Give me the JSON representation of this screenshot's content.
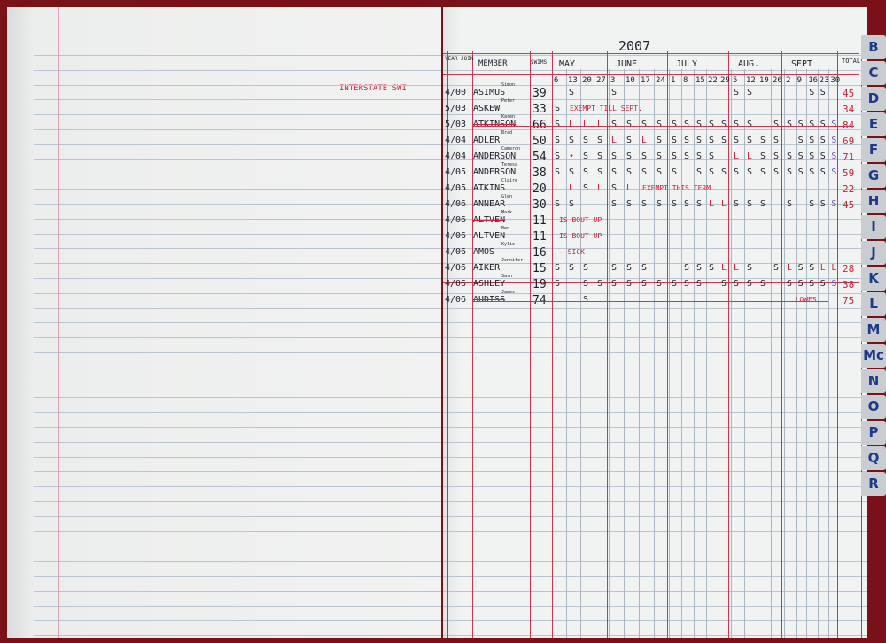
{
  "left_page": {
    "margin_note": "INTERSTATE SWI"
  },
  "ledger": {
    "year": "2007",
    "headers": {
      "year_join": "YEAR JOIN",
      "member": "MEMBER",
      "swims": "SWIMS",
      "total": "TOTAL"
    },
    "months": [
      {
        "name": "MAY",
        "dates": [
          "6",
          "13",
          "20",
          "27"
        ]
      },
      {
        "name": "JUNE",
        "dates": [
          "3",
          "10",
          "17",
          "24"
        ]
      },
      {
        "name": "JULY",
        "dates": [
          "1",
          "8",
          "15",
          "22",
          "29"
        ]
      },
      {
        "name": "AUG.",
        "dates": [
          "5",
          "12",
          "19",
          "26"
        ]
      },
      {
        "name": "SEPT",
        "dates": [
          "2",
          "9",
          "16",
          "23",
          "30"
        ]
      }
    ],
    "rows": [
      {
        "joined": "4/00",
        "surname": "ASIMUS",
        "first": "Simon",
        "swims": "39",
        "cells": [
          "",
          "S",
          "",
          "",
          "S",
          "",
          "",
          "",
          "",
          "",
          "",
          "",
          "",
          "S",
          "S",
          "",
          "",
          "",
          "",
          "S",
          "S",
          ""
        ],
        "note": "",
        "total": "45",
        "struck": false
      },
      {
        "joined": "5/03",
        "surname": "ASKEW",
        "first": "Peter",
        "swims": "33",
        "cells": [
          "S",
          "",
          "",
          "",
          "",
          "",
          "",
          "",
          "",
          "",
          "",
          "",
          "",
          "",
          "",
          "",
          "",
          "",
          "",
          "",
          "",
          ""
        ],
        "note": "EXEMPT TILL SEPT.",
        "total": "34",
        "struck": false
      },
      {
        "joined": "5/03",
        "surname": "ATKINSON",
        "first": "Karen",
        "swims": "66",
        "cells": [
          "S",
          "L",
          "L",
          "L",
          "S",
          "S",
          "S",
          "S",
          "S",
          "S",
          "S",
          "S",
          "S",
          "S",
          "S",
          "",
          "S",
          "S",
          "S",
          "S",
          "S",
          "S"
        ],
        "note": "",
        "total": "84",
        "struck": true
      },
      {
        "joined": "4/04",
        "surname": "ADLER",
        "first": "Brad",
        "swims": "50",
        "cells": [
          "S",
          "S",
          "S",
          "S",
          "L",
          "S",
          "L",
          "S",
          "S",
          "S",
          "S",
          "S",
          "S",
          "S",
          "S",
          "S",
          "S",
          "",
          "S",
          "S",
          "S",
          "S"
        ],
        "note": "",
        "total": "69",
        "struck": false
      },
      {
        "joined": "4/04",
        "surname": "ANDERSON",
        "first": "Cameron",
        "swims": "54",
        "cells": [
          "S",
          "•",
          "S",
          "S",
          "S",
          "S",
          "S",
          "S",
          "S",
          "S",
          "S",
          "S",
          "",
          "L",
          "L",
          "S",
          "S",
          "S",
          "S",
          "S",
          "S",
          "S"
        ],
        "note": "",
        "total": "71",
        "struck": false
      },
      {
        "joined": "4/05",
        "surname": "ANDERSON",
        "first": "Teresa",
        "swims": "38",
        "cells": [
          "S",
          "S",
          "S",
          "S",
          "S",
          "S",
          "S",
          "S",
          "S",
          "",
          "S",
          "S",
          "S",
          "S",
          "S",
          "S",
          "S",
          "S",
          "S",
          "S",
          "S",
          "S"
        ],
        "note": "",
        "total": "59",
        "struck": false
      },
      {
        "joined": "4/05",
        "surname": "ATKINS",
        "first": "Claire",
        "swims": "20",
        "cells": [
          "L",
          "L",
          "S",
          "L",
          "S",
          "L",
          "",
          "",
          "",
          "",
          "",
          "",
          "",
          "",
          "",
          "",
          "",
          "",
          "",
          "",
          "",
          ""
        ],
        "note": "EXEMPT THIS TERM",
        "total": "22",
        "struck": false
      },
      {
        "joined": "4/06",
        "surname": "ANNEAR",
        "first": "Glen",
        "swims": "30",
        "cells": [
          "S",
          "S",
          "",
          "",
          "S",
          "S",
          "S",
          "S",
          "S",
          "S",
          "S",
          "L",
          "L",
          "S",
          "S",
          "S",
          "",
          "S",
          "",
          "S",
          "S",
          "S"
        ],
        "note": "",
        "total": "45",
        "struck": false
      },
      {
        "joined": "4/06",
        "surname": "ALTVEN",
        "first": "Mark",
        "swims": "11",
        "cells": [],
        "note": "IS BOUT UP",
        "total": "",
        "struck": true
      },
      {
        "joined": "4/06",
        "surname": "ALTVEN",
        "first": "Ben",
        "swims": "11",
        "cells": [],
        "note": "IS BOUT UP",
        "total": "",
        "struck": true
      },
      {
        "joined": "4/06",
        "surname": "AMOS",
        "first": "Kylie",
        "swims": "16",
        "cells": [],
        "note": "— SICK",
        "total": "",
        "struck": true
      },
      {
        "joined": "4/06",
        "surname": "AIKER",
        "first": "Jennifer",
        "swims": "15",
        "cells": [
          "S",
          "S",
          "S",
          "",
          "S",
          "S",
          "S",
          "",
          "",
          "S",
          "S",
          "S",
          "L",
          "L",
          "S",
          "",
          "S",
          "L",
          "S",
          "S",
          "L",
          "L"
        ],
        "note": "",
        "total": "28",
        "struck": false
      },
      {
        "joined": "4/06",
        "surname": "ASHLEY",
        "first": "Sarn",
        "swims": "19",
        "cells": [
          "S",
          "",
          "S",
          "S",
          "S",
          "S",
          "S",
          "S",
          "S",
          "S",
          "S",
          "",
          "S",
          "S",
          "S",
          "S",
          "",
          "S",
          "S",
          "S",
          "S",
          "S"
        ],
        "note": "",
        "total": "38",
        "struck": false
      },
      {
        "joined": "4/06",
        "surname": "AUDISS",
        "first": "James",
        "swims": "74",
        "cells": [
          "",
          "",
          "S",
          "",
          "",
          "",
          "",
          "",
          "",
          "",
          "",
          "",
          "",
          "",
          "",
          "",
          "",
          "",
          "",
          "",
          "",
          ""
        ],
        "note": "LOWES",
        "total": "75",
        "struck": true
      }
    ]
  },
  "index_tabs": [
    "B",
    "C",
    "D",
    "E",
    "F",
    "G",
    "H",
    "I",
    "J",
    "K",
    "L",
    "M",
    "Mc",
    "N",
    "O",
    "P",
    "Q",
    "R"
  ],
  "colors": {
    "red_ink": "#d4203a",
    "black_ink": "#1e1e2a",
    "rule_blue": "#b9c4cf",
    "tab_letter": "#1d3a8a",
    "cover": "#7a1018"
  }
}
